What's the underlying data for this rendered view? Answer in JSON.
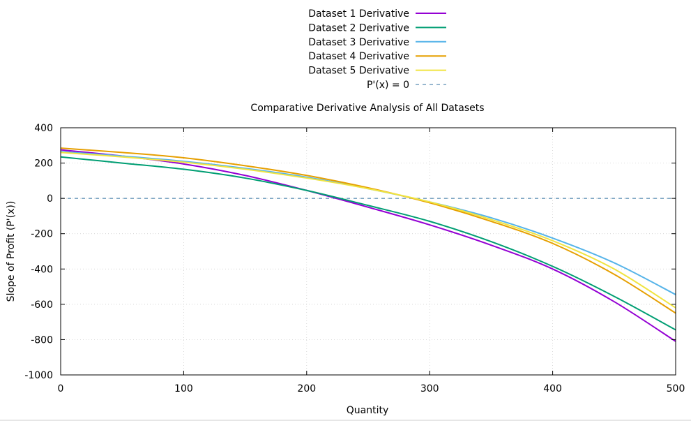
{
  "chart_data": {
    "type": "line",
    "title": "Comparative Derivative Analysis of All Datasets",
    "xlabel": "Quantity",
    "ylabel": "Slope of Profit (P'(x))",
    "xlim": [
      0,
      500
    ],
    "ylim": [
      -1000,
      400
    ],
    "xticks": [
      "0",
      "100",
      "200",
      "300",
      "400",
      "500"
    ],
    "yticks": [
      "400",
      "200",
      "0",
      "-200",
      "-400",
      "-600",
      "-800",
      "-1000"
    ],
    "grid": true,
    "legend_position": "top-center",
    "x": [
      0,
      50,
      100,
      150,
      200,
      250,
      300,
      350,
      400,
      450,
      500
    ],
    "series": [
      {
        "name": "Dataset 1 Derivative",
        "color": "#9400d3",
        "values": [
          275,
          240,
          195,
          130,
          45,
          -50,
          -150,
          -265,
          -400,
          -585,
          -810
        ]
      },
      {
        "name": "Dataset 2 Derivative",
        "color": "#009e73",
        "values": [
          235,
          200,
          165,
          115,
          45,
          -40,
          -130,
          -245,
          -385,
          -555,
          -745
        ]
      },
      {
        "name": "Dataset 3 Derivative",
        "color": "#56b4e9",
        "values": [
          265,
          240,
          210,
          170,
          120,
          55,
          -20,
          -110,
          -225,
          -365,
          -545
        ]
      },
      {
        "name": "Dataset 4 Derivative",
        "color": "#e69f00",
        "values": [
          285,
          260,
          230,
          185,
          130,
          60,
          -25,
          -130,
          -255,
          -430,
          -650
        ]
      },
      {
        "name": "Dataset 5 Derivative",
        "color": "#f0e442",
        "values": [
          260,
          235,
          205,
          165,
          115,
          55,
          -20,
          -120,
          -240,
          -400,
          -620
        ]
      }
    ],
    "reference_line": {
      "name": "P'(x) = 0",
      "y": 0,
      "color": "#2f6f9f",
      "style": "dashed"
    }
  }
}
